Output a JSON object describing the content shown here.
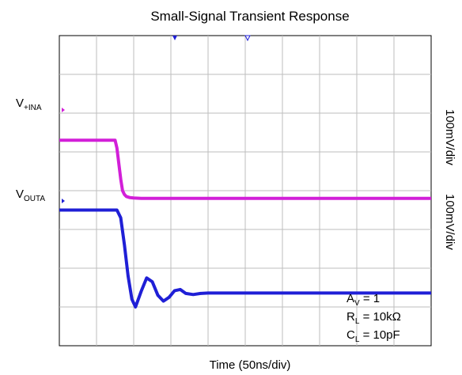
{
  "chart_data": {
    "type": "line",
    "title": "Small-Signal Transient Response",
    "xlabel": "Time (50ns/div)",
    "x_divisions": 10,
    "y_divisions": 8,
    "grid": true,
    "series": [
      {
        "name": "V+INA",
        "color": "#d21fd8",
        "scale": "100mV/div",
        "x": [
          0,
          1.5,
          1.55,
          1.6,
          1.65,
          1.7,
          1.75,
          1.8,
          1.9,
          2.0,
          2.2,
          2.4,
          10
        ],
        "y": [
          5.3,
          5.3,
          5.1,
          4.7,
          4.3,
          4.0,
          3.9,
          3.85,
          3.82,
          3.81,
          3.8,
          3.8,
          3.8
        ]
      },
      {
        "name": "VOUTA",
        "color": "#1f1fd6",
        "scale": "100mV/div",
        "x": [
          0,
          1.55,
          1.65,
          1.75,
          1.85,
          1.95,
          2.05,
          2.2,
          2.35,
          2.5,
          2.65,
          2.8,
          2.95,
          3.1,
          3.25,
          3.4,
          3.6,
          3.8,
          4.0,
          10
        ],
        "y": [
          3.5,
          3.5,
          3.3,
          2.6,
          1.8,
          1.2,
          1.0,
          1.4,
          1.75,
          1.65,
          1.3,
          1.15,
          1.25,
          1.42,
          1.45,
          1.35,
          1.32,
          1.35,
          1.36,
          1.36
        ]
      }
    ],
    "channel_labels": [
      {
        "main": "V",
        "sub": "+INA"
      },
      {
        "main": "V",
        "sub": "OUTA"
      }
    ],
    "scale_labels": [
      "100mV/div",
      "100mV/div"
    ],
    "annotations": [
      {
        "main": "A",
        "sub": "V",
        "rest": " = 1"
      },
      {
        "main": "R",
        "sub": "L",
        "rest": " = 10kΩ"
      },
      {
        "main": "C",
        "sub": "L",
        "rest": " = 10pF"
      }
    ]
  }
}
